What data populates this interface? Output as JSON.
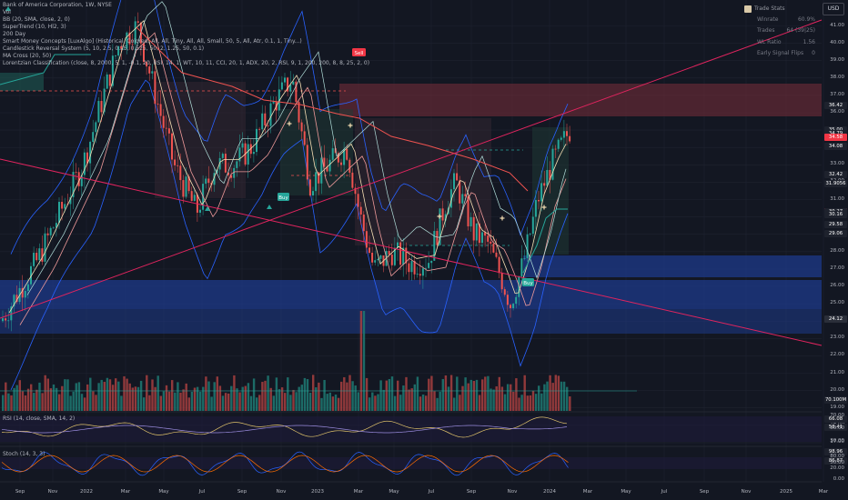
{
  "legend": {
    "title": "Bank of America Corporation, 1W, NYSE",
    "lines": [
      "Vol",
      "BB (20, SMA, close, 2, 0)",
      "SuperTrend (10, Hl2, 3)",
      "200 Day",
      "Smart Money Concepts [LuxAlgo] (Historical, Colored, All, All, Tiny, All, All, Small, 50, 5, All, Atr, 0.1, 1, Tiny...)",
      "Candlestick Reversal System (5, 10, 2.5, 0.25, 0.525, 50, 2, 1.25, 50, 0.1)",
      "MA Cross (20, 50)",
      "Lorentzian Classification (close, 8, 2000, 5, 1, -0.1, 20, RSI, 14, 1, WT, 10, 11, CCI, 20, 1, ADX, 20, 2, RSI, 9, 1, 200, 200, 8, 8, 25, 2, 0)"
    ]
  },
  "currency_button": "USD",
  "trade_stats": {
    "title": "Trade Stats",
    "rows": [
      {
        "label": "Winrate",
        "value": "60.9%"
      },
      {
        "label": "Trades",
        "value": "64 (39|25)"
      },
      {
        "label": "WL Ratio",
        "value": "1.56"
      },
      {
        "label": "Early Signal Flips",
        "value": "0"
      }
    ]
  },
  "price_axis": [
    "41.00",
    "40.00",
    "39.00",
    "38.00",
    "37.00",
    "36.00",
    "35.00",
    "34.00",
    "33.00",
    "32.00",
    "31.00",
    "30.00",
    "29.00",
    "28.00",
    "27.00",
    "26.00",
    "25.00",
    "24.00",
    "23.00",
    "22.00",
    "21.00",
    "20.00",
    "19.00",
    "18.00",
    "17.00"
  ],
  "price_tags": [
    {
      "text": "36.42",
      "color": "#1e222d"
    },
    {
      "text": "35.00",
      "color": "#1e222d"
    },
    {
      "text": "34.79",
      "color": "#1e222d"
    },
    {
      "text": "34.58",
      "color": "#f23645"
    },
    {
      "text": "34.08",
      "color": "#1e222d"
    },
    {
      "text": "32.42",
      "color": "#1e222d"
    },
    {
      "text": "31.9056",
      "color": "#1e222d"
    },
    {
      "text": "30.31",
      "color": "#f23645"
    },
    {
      "text": "30.27",
      "color": "#1e222d"
    },
    {
      "text": "30.16",
      "color": "#1e222d"
    },
    {
      "text": "29.58",
      "color": "#1e222d"
    },
    {
      "text": "29.06",
      "color": "#1e222d"
    },
    {
      "text": "24.12",
      "color": "#2a2e39"
    },
    {
      "text": "70.100M",
      "color": "#1e222d"
    },
    {
      "text": "66.08",
      "color": "#1e222d"
    },
    {
      "text": "58.41",
      "color": "#1e222d"
    },
    {
      "text": "98.96",
      "color": "#1e222d"
    },
    {
      "text": "86.87",
      "color": "#1e222d"
    }
  ],
  "rsi_axis": [
    "70.00",
    "50.00",
    "30.00"
  ],
  "stoch_axis": [
    "80.00",
    "50.00",
    "20.00",
    "0.00"
  ],
  "time_axis": [
    "Sep",
    "Nov",
    "2022",
    "Mar",
    "May",
    "Jul",
    "Sep",
    "Nov",
    "2023",
    "Mar",
    "May",
    "Jul",
    "Sep",
    "Nov",
    "2024",
    "Mar",
    "May",
    "Jul",
    "Sep",
    "Nov",
    "2025",
    "Mar"
  ],
  "panes": {
    "rsi_label": "RSI (14, close, SMA, 14, 2)",
    "stoch_label": "Stoch (14, 3, 3)"
  },
  "signals": {
    "buy": "Buy",
    "sell": "Sell",
    "long": "Buy"
  },
  "colors": {
    "background": "#131722",
    "up": "#26a69a",
    "down": "#ef5350",
    "trendline": "#e0245e",
    "bb": "#2962ff",
    "supertrend_down": "#ef5350",
    "supertrend_up": "#26a69a"
  }
}
